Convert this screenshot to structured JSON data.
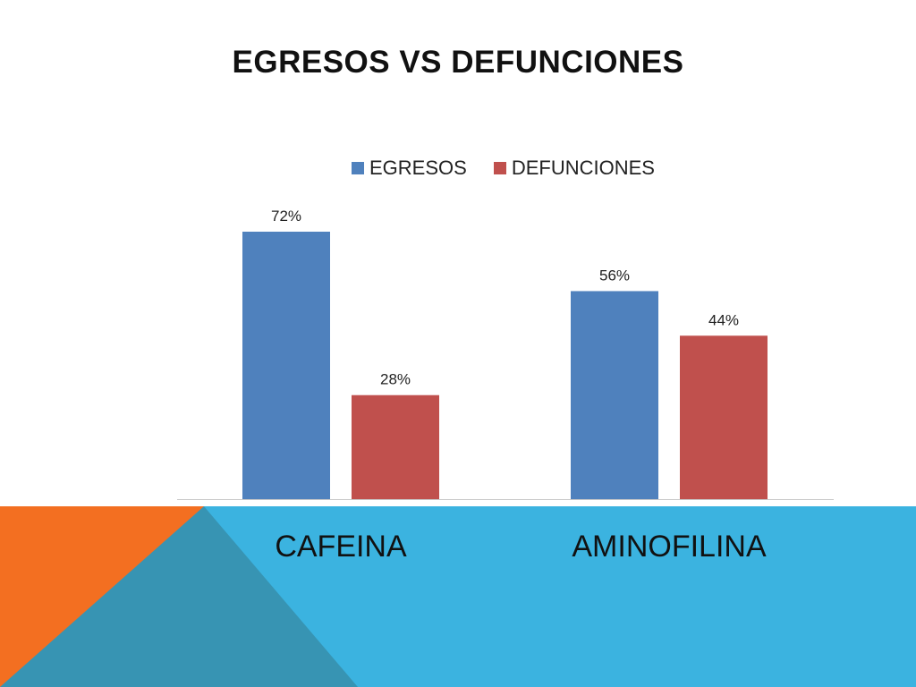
{
  "colors": {
    "egresos": "#4f81bd",
    "defunciones": "#c0504d",
    "band_blue": "#3bb3e0",
    "band_teal": "#3794b3",
    "band_orange": "#f36f21",
    "axis": "#c8c8c8"
  },
  "chart_data": {
    "type": "bar",
    "title": "EGRESOS VS DEFUNCIONES",
    "categories": [
      "CAFEINA",
      "AMINOFILINA"
    ],
    "series": [
      {
        "name": "EGRESOS",
        "values": [
          72,
          56
        ],
        "labels": [
          "72%",
          "56%"
        ]
      },
      {
        "name": "DEFUNCIONES",
        "values": [
          28,
          44
        ],
        "labels": [
          "28%",
          "44%"
        ]
      }
    ],
    "ylim": [
      0,
      80
    ],
    "legend": "top-center",
    "grid": false
  }
}
